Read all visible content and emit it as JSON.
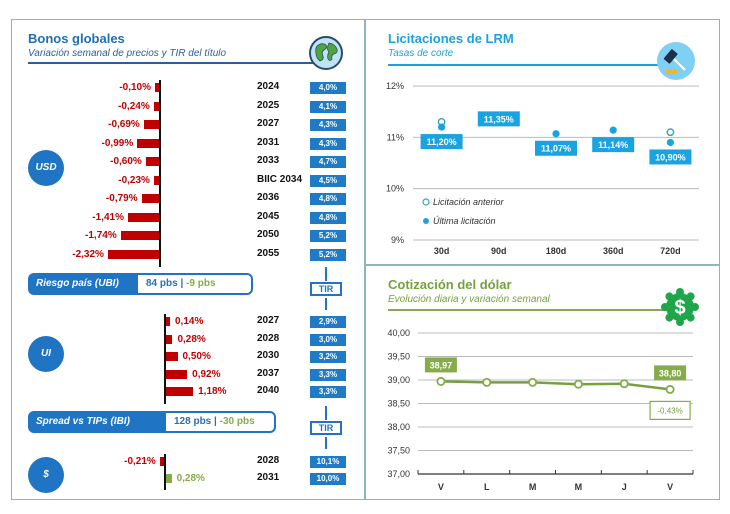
{
  "bonos": {
    "title": "Bonos globales",
    "subtitle": "Variación semanal de precios y TIR del título",
    "icon": "globe-icon",
    "usd": {
      "label": "USD",
      "rows": [
        {
          "change": "-0,10%",
          "value": -0.1,
          "bond": "2024",
          "tir": "4,0%"
        },
        {
          "change": "-0,24%",
          "value": -0.24,
          "bond": "2025",
          "tir": "4,1%"
        },
        {
          "change": "-0,69%",
          "value": -0.69,
          "bond": "2027",
          "tir": "4,3%"
        },
        {
          "change": "-0,99%",
          "value": -0.99,
          "bond": "2031",
          "tir": "4,3%"
        },
        {
          "change": "-0,60%",
          "value": -0.6,
          "bond": "2033",
          "tir": "4,7%"
        },
        {
          "change": "-0,23%",
          "value": -0.23,
          "bond": "BIIC 2034",
          "tir": "4,5%"
        },
        {
          "change": "-0,79%",
          "value": -0.79,
          "bond": "2036",
          "tir": "4,8%"
        },
        {
          "change": "-1,41%",
          "value": -1.41,
          "bond": "2045",
          "tir": "4,8%"
        },
        {
          "change": "-1,74%",
          "value": -1.74,
          "bond": "2050",
          "tir": "5,2%"
        },
        {
          "change": "-2,32%",
          "value": -2.32,
          "bond": "2055",
          "tir": "5,2%"
        }
      ]
    },
    "riesgo": {
      "label": "Riesgo país (UBI)",
      "value": "84 pbs",
      "sep": "|",
      "change": "-9 pbs"
    },
    "tir_label": "TIR",
    "ui": {
      "label": "UI",
      "rows": [
        {
          "change": "0,14%",
          "value": 0.14,
          "bond": "2027",
          "tir": "2,9%"
        },
        {
          "change": "0,28%",
          "value": 0.28,
          "bond": "2028",
          "tir": "3,0%"
        },
        {
          "change": "0,50%",
          "value": 0.5,
          "bond": "2030",
          "tir": "3,2%"
        },
        {
          "change": "0,92%",
          "value": 0.92,
          "bond": "2037",
          "tir": "3,3%"
        },
        {
          "change": "1,18%",
          "value": 1.18,
          "bond": "2040",
          "tir": "3,3%"
        }
      ]
    },
    "spread": {
      "label": "Spread vs TIPs (IBI)",
      "value": "128 pbs",
      "sep": "|",
      "change": "-30 pbs"
    },
    "peso": {
      "label": "$",
      "rows": [
        {
          "change": "-0,21%",
          "value": -0.21,
          "bond": "2028",
          "tir": "10,1%"
        },
        {
          "change": "0,28%",
          "value": 0.28,
          "bond": "2031",
          "tir": "10,0%"
        }
      ]
    },
    "colors": {
      "negative": "#c00000",
      "positive_peso": "#86ab4b",
      "tir": "#1f7bc6"
    }
  },
  "licitaciones": {
    "title": "Licitaciones de LRM",
    "subtitle": "Tasas de corte",
    "icon": "gavel-icon",
    "legend": {
      "prev": "Licitación anterior",
      "last": "Última licitación"
    }
  },
  "dolar": {
    "title": "Cotización del dólar",
    "subtitle": "Evolución diaria y variación semanal",
    "icon": "dollar-badge-icon",
    "first_label": "38,97",
    "last_label": "38,80",
    "weekly_change": "-0,43%"
  },
  "chart_data": [
    {
      "type": "bar",
      "title": "Bonos globales USD - variación semanal",
      "categories": [
        "2024",
        "2025",
        "2027",
        "2031",
        "2033",
        "BIIC 2034",
        "2036",
        "2045",
        "2050",
        "2055"
      ],
      "values": [
        -0.1,
        -0.24,
        -0.69,
        -0.99,
        -0.6,
        -0.23,
        -0.79,
        -1.41,
        -1.74,
        -2.32
      ],
      "tir": [
        "4,0%",
        "4,1%",
        "4,3%",
        "4,3%",
        "4,7%",
        "4,5%",
        "4,8%",
        "4,8%",
        "5,2%",
        "5,2%"
      ]
    },
    {
      "type": "scatter",
      "title": "Licitaciones de LRM",
      "subtitle": "Tasas de corte",
      "categories": [
        "30d",
        "90d",
        "180d",
        "360d",
        "720d"
      ],
      "series": [
        {
          "name": "Licitación anterior",
          "values": [
            11.3,
            null,
            null,
            null,
            11.1
          ]
        },
        {
          "name": "Última licitación",
          "values": [
            11.2,
            11.35,
            11.07,
            11.14,
            10.9
          ]
        }
      ],
      "labels": [
        "11,20%",
        "11,35%",
        "11,07%",
        "11,14%",
        "10,90%"
      ],
      "yticks": [
        "9%",
        "10%",
        "11%",
        "12%"
      ],
      "ylim": [
        9,
        12
      ],
      "legend": "bottom-left"
    },
    {
      "type": "line",
      "title": "Cotización del dólar",
      "subtitle": "Evolución diaria y variación semanal",
      "categories": [
        "V",
        "L",
        "M",
        "M",
        "J",
        "V"
      ],
      "values": [
        38.97,
        38.95,
        38.95,
        38.91,
        38.92,
        38.8
      ],
      "yticks": [
        "37,00",
        "37,50",
        "38,00",
        "38,50",
        "39,00",
        "39,50",
        "40,00"
      ],
      "ylim": [
        37,
        40
      ],
      "annotations": [
        "38,97",
        "38,80",
        "-0,43%"
      ]
    }
  ]
}
